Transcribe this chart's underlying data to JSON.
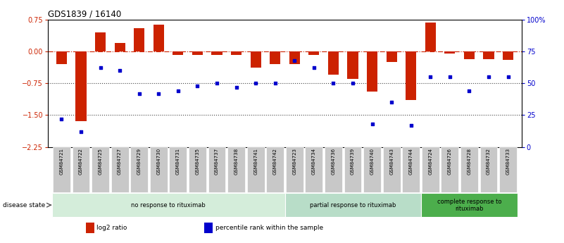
{
  "title": "GDS1839 / 16140",
  "samples": [
    "GSM84721",
    "GSM84722",
    "GSM84725",
    "GSM84727",
    "GSM84729",
    "GSM84730",
    "GSM84731",
    "GSM84735",
    "GSM84737",
    "GSM84738",
    "GSM84741",
    "GSM84742",
    "GSM84723",
    "GSM84734",
    "GSM84736",
    "GSM84739",
    "GSM84740",
    "GSM84743",
    "GSM84744",
    "GSM84724",
    "GSM84726",
    "GSM84728",
    "GSM84732",
    "GSM84733"
  ],
  "log2_ratio": [
    -0.3,
    -1.65,
    0.45,
    0.2,
    0.55,
    0.62,
    -0.08,
    -0.08,
    -0.08,
    -0.08,
    -0.38,
    -0.3,
    -0.3,
    -0.08,
    -0.55,
    -0.65,
    -0.95,
    -0.25,
    -1.15,
    0.68,
    -0.05,
    -0.18,
    -0.18,
    -0.2
  ],
  "percentile": [
    22,
    12,
    62,
    60,
    42,
    42,
    44,
    48,
    50,
    47,
    50,
    50,
    68,
    62,
    50,
    50,
    18,
    35,
    17,
    55,
    55,
    44,
    55,
    55
  ],
  "groups": [
    {
      "label": "no response to rituximab",
      "start": 0,
      "end": 12,
      "color": "#d4edda"
    },
    {
      "label": "partial response to rituximab",
      "start": 12,
      "end": 19,
      "color": "#b8ddc8"
    },
    {
      "label": "complete response to\nrituximab",
      "start": 19,
      "end": 24,
      "color": "#4cae4c"
    }
  ],
  "bar_color": "#cc2200",
  "dot_color": "#0000cc",
  "ylim_left": [
    -2.25,
    0.75
  ],
  "ylim_right": [
    0,
    100
  ],
  "yticks_left": [
    -2.25,
    -1.5,
    -0.75,
    0,
    0.75
  ],
  "yticks_right": [
    0,
    25,
    50,
    75,
    100
  ],
  "ytick_labels_right": [
    "0",
    "25",
    "50",
    "75",
    "100%"
  ],
  "hline_y": [
    0,
    -0.75,
    -1.5
  ],
  "hline_styles": [
    "dashdot",
    "dotted",
    "dotted"
  ],
  "hline_colors": [
    "#cc2200",
    "#444444",
    "#444444"
  ],
  "disease_state_label": "disease state",
  "legend_items": [
    {
      "color": "#cc2200",
      "label": "log2 ratio",
      "marker": "s"
    },
    {
      "color": "#0000cc",
      "label": "percentile rank within the sample",
      "marker": "s"
    }
  ],
  "bg_color": "#ffffff"
}
